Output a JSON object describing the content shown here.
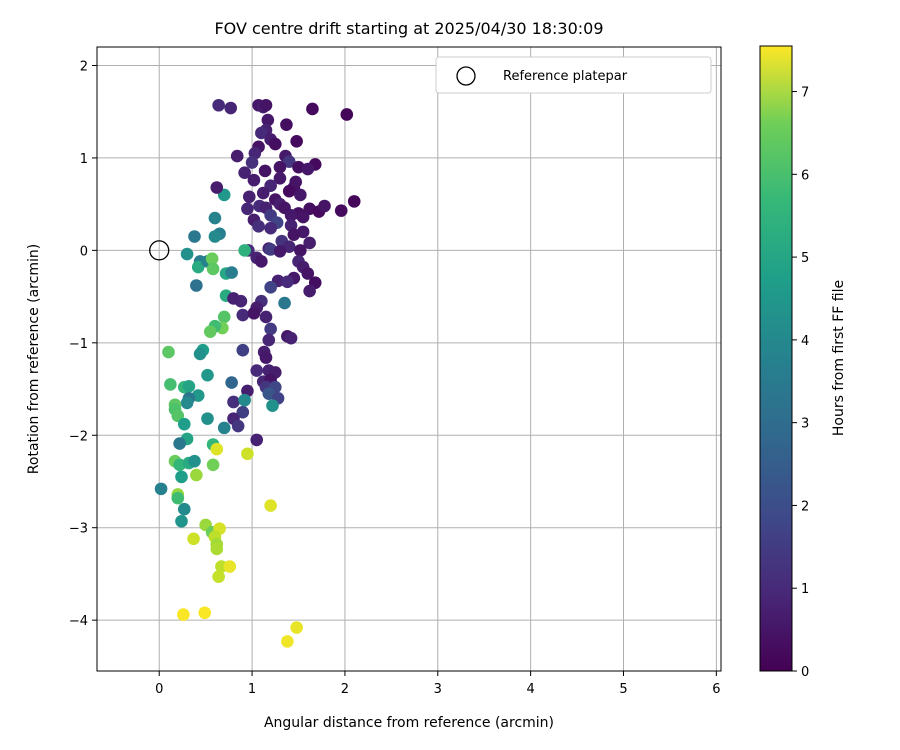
{
  "chart_data": {
    "type": "scatter",
    "title": "FOV centre drift starting at 2025/04/30 18:30:09",
    "xlabel": "Angular distance from reference (arcmin)",
    "ylabel": "Rotation from reference (arcmin)",
    "xlim": [
      -0.67,
      6.05
    ],
    "ylim": [
      -4.55,
      2.2
    ],
    "xticks": [
      "0",
      "1",
      "2",
      "3",
      "4",
      "5",
      "6"
    ],
    "yticks": [
      "−4",
      "−3",
      "−2",
      "−1",
      "0",
      "1",
      "2"
    ],
    "grid": true,
    "colormap": "viridis",
    "colorbar": {
      "label": "Hours from first FF file",
      "range": [
        0,
        7.55
      ],
      "ticks": [
        "0",
        "1",
        "2",
        "3",
        "4",
        "5",
        "6",
        "7"
      ]
    },
    "legend": {
      "position": "top-right",
      "entries": [
        {
          "label": "Reference platepar",
          "marker": "open-circle"
        }
      ]
    },
    "reference_point": [
      0,
      0
    ],
    "points": [
      [
        1.07,
        1.57,
        0.5
      ],
      [
        1.12,
        1.55,
        0.6
      ],
      [
        1.15,
        1.57,
        0.4
      ],
      [
        0.64,
        1.57,
        0.9
      ],
      [
        0.77,
        1.54,
        0.8
      ],
      [
        1.65,
        1.53,
        0.2
      ],
      [
        2.02,
        1.47,
        0.1
      ],
      [
        1.17,
        1.41,
        0.5
      ],
      [
        1.15,
        1.3,
        0.7
      ],
      [
        1.1,
        1.27,
        0.9
      ],
      [
        1.37,
        1.36,
        0.3
      ],
      [
        1.2,
        1.2,
        0.6
      ],
      [
        1.07,
        1.12,
        0.4
      ],
      [
        1.03,
        1.05,
        0.8
      ],
      [
        1.25,
        1.15,
        0.3
      ],
      [
        1.48,
        1.18,
        0.2
      ],
      [
        1.0,
        0.95,
        1.0
      ],
      [
        0.84,
        1.02,
        0.6
      ],
      [
        1.36,
        1.02,
        0.5
      ],
      [
        1.4,
        0.96,
        1.2
      ],
      [
        1.3,
        0.9,
        0.4
      ],
      [
        1.5,
        0.9,
        0.3
      ],
      [
        1.68,
        0.93,
        0.2
      ],
      [
        1.6,
        0.88,
        0.5
      ],
      [
        0.92,
        0.84,
        0.7
      ],
      [
        1.14,
        0.86,
        0.4
      ],
      [
        1.3,
        0.78,
        0.5
      ],
      [
        1.02,
        0.76,
        0.6
      ],
      [
        1.2,
        0.7,
        0.8
      ],
      [
        1.45,
        0.68,
        0.3
      ],
      [
        1.47,
        0.74,
        0.4
      ],
      [
        1.4,
        0.64,
        0.2
      ],
      [
        1.12,
        0.62,
        0.6
      ],
      [
        1.52,
        0.6,
        0.5
      ],
      [
        0.97,
        0.58,
        0.7
      ],
      [
        1.25,
        0.55,
        0.4
      ],
      [
        1.62,
        0.45,
        0.3
      ],
      [
        1.72,
        0.42,
        0.2
      ],
      [
        1.78,
        0.48,
        0.4
      ],
      [
        2.1,
        0.53,
        0.1
      ],
      [
        1.96,
        0.43,
        0.2
      ],
      [
        1.08,
        0.48,
        0.9
      ],
      [
        1.3,
        0.5,
        0.6
      ],
      [
        1.35,
        0.46,
        0.4
      ],
      [
        1.15,
        0.46,
        0.7
      ],
      [
        0.95,
        0.45,
        0.8
      ],
      [
        1.5,
        0.4,
        0.3
      ],
      [
        1.42,
        0.38,
        0.5
      ],
      [
        1.55,
        0.36,
        0.4
      ],
      [
        1.2,
        0.38,
        1.3
      ],
      [
        1.02,
        0.33,
        0.6
      ],
      [
        1.27,
        0.3,
        1.5
      ],
      [
        1.42,
        0.27,
        0.7
      ],
      [
        1.07,
        0.26,
        1.0
      ],
      [
        1.2,
        0.24,
        0.9
      ],
      [
        1.55,
        0.2,
        0.5
      ],
      [
        1.45,
        0.17,
        0.4
      ],
      [
        1.32,
        0.1,
        1.1
      ],
      [
        1.62,
        0.08,
        0.6
      ],
      [
        1.4,
        0.04,
        0.8
      ],
      [
        1.18,
        0.02,
        0.7
      ],
      [
        1.2,
        0.01,
        1.3
      ],
      [
        1.3,
        -0.01,
        0.5
      ],
      [
        1.52,
        0.0,
        0.4
      ],
      [
        0.96,
        0.0,
        0.9
      ],
      [
        0.92,
        0.0,
        4.8
      ],
      [
        1.05,
        -0.08,
        0.7
      ],
      [
        1.1,
        -0.12,
        0.5
      ],
      [
        1.5,
        -0.12,
        0.8
      ],
      [
        1.55,
        -0.18,
        0.6
      ],
      [
        1.6,
        -0.25,
        0.4
      ],
      [
        1.28,
        -0.33,
        0.7
      ],
      [
        1.45,
        -0.3,
        0.5
      ],
      [
        1.38,
        -0.34,
        0.9
      ],
      [
        1.68,
        -0.35,
        0.3
      ],
      [
        1.62,
        -0.44,
        0.6
      ],
      [
        1.2,
        -0.4,
        1.5
      ],
      [
        0.88,
        -0.55,
        0.8
      ],
      [
        1.1,
        -0.55,
        1.0
      ],
      [
        1.05,
        -0.62,
        0.6
      ],
      [
        1.15,
        -0.72,
        0.7
      ],
      [
        0.9,
        -0.7,
        0.9
      ],
      [
        1.02,
        -0.68,
        0.4
      ],
      [
        1.35,
        -0.57,
        3.0
      ],
      [
        1.2,
        -0.85,
        1.3
      ],
      [
        1.38,
        -0.93,
        0.5
      ],
      [
        1.42,
        -0.95,
        0.7
      ],
      [
        1.18,
        -0.97,
        0.8
      ],
      [
        1.13,
        -1.1,
        0.6
      ],
      [
        1.15,
        -1.16,
        0.5
      ],
      [
        1.18,
        -1.3,
        0.7
      ],
      [
        1.05,
        -1.3,
        0.9
      ],
      [
        1.25,
        -1.32,
        0.6
      ],
      [
        1.12,
        -1.42,
        0.8
      ],
      [
        1.2,
        -1.4,
        0.4
      ],
      [
        1.15,
        -1.48,
        1.2
      ],
      [
        1.25,
        -1.48,
        1.6
      ],
      [
        1.18,
        -1.55,
        2.0
      ],
      [
        1.28,
        -1.6,
        1.5
      ],
      [
        0.9,
        -1.08,
        1.4
      ],
      [
        0.95,
        -1.52,
        0.6
      ],
      [
        0.78,
        -1.43,
        2.5
      ],
      [
        0.8,
        -1.64,
        1.0
      ],
      [
        0.9,
        -1.75,
        1.4
      ],
      [
        0.92,
        -1.62,
        3.6
      ],
      [
        0.8,
        -1.82,
        0.8
      ],
      [
        0.85,
        -1.9,
        1.2
      ],
      [
        0.7,
        -1.92,
        3.4
      ],
      [
        1.05,
        -2.05,
        0.7
      ],
      [
        1.22,
        -1.68,
        3.8
      ],
      [
        0.38,
        0.15,
        3.0
      ],
      [
        0.3,
        -0.04,
        3.8
      ],
      [
        0.44,
        -0.12,
        3.2
      ],
      [
        0.42,
        -0.18,
        4.6
      ],
      [
        0.52,
        -0.12,
        3.4
      ],
      [
        0.57,
        -0.09,
        5.8
      ],
      [
        0.58,
        -0.2,
        5.6
      ],
      [
        0.4,
        -0.38,
        2.8
      ],
      [
        0.72,
        -0.25,
        4.5
      ],
      [
        0.78,
        -0.24,
        3.2
      ],
      [
        0.72,
        -0.49,
        4.6
      ],
      [
        0.65,
        0.18,
        3.2
      ],
      [
        0.6,
        0.15,
        3.6
      ],
      [
        0.6,
        0.35,
        3.4
      ],
      [
        0.7,
        0.6,
        4.0
      ],
      [
        0.62,
        0.68,
        0.6
      ],
      [
        0.8,
        -0.52,
        0.7
      ],
      [
        0.7,
        -0.72,
        5.5
      ],
      [
        0.68,
        -0.84,
        5.9
      ],
      [
        0.6,
        -0.82,
        5.2
      ],
      [
        0.55,
        -0.88,
        5.7
      ],
      [
        0.47,
        -1.08,
        4.2
      ],
      [
        0.44,
        -1.12,
        3.8
      ],
      [
        0.1,
        -1.1,
        5.6
      ],
      [
        0.12,
        -1.45,
        5.3
      ],
      [
        0.27,
        -1.48,
        5.0
      ],
      [
        0.32,
        -1.47,
        4.4
      ],
      [
        0.42,
        -1.57,
        4.0
      ],
      [
        0.32,
        -1.6,
        3.0
      ],
      [
        0.3,
        -1.65,
        3.6
      ],
      [
        0.52,
        -1.35,
        4.0
      ],
      [
        0.17,
        -1.67,
        5.6
      ],
      [
        0.17,
        -1.72,
        5.4
      ],
      [
        0.2,
        -1.79,
        5.5
      ],
      [
        0.27,
        -1.88,
        4.2
      ],
      [
        0.52,
        -1.82,
        3.8
      ],
      [
        0.3,
        -2.04,
        4.4
      ],
      [
        0.22,
        -2.09,
        3.0
      ],
      [
        0.58,
        -2.1,
        5.0
      ],
      [
        0.17,
        -2.28,
        5.8
      ],
      [
        0.22,
        -2.32,
        5.0
      ],
      [
        0.32,
        -2.3,
        4.6
      ],
      [
        0.38,
        -2.28,
        3.8
      ],
      [
        0.24,
        -2.45,
        4.2
      ],
      [
        0.58,
        -2.32,
        5.9
      ],
      [
        0.4,
        -2.43,
        6.4
      ],
      [
        0.62,
        -2.15,
        7.2
      ],
      [
        0.95,
        -2.2,
        7.0
      ],
      [
        0.02,
        -2.58,
        3.3
      ],
      [
        0.2,
        -2.64,
        6.3
      ],
      [
        0.2,
        -2.68,
        5.2
      ],
      [
        0.27,
        -2.8,
        3.6
      ],
      [
        0.24,
        -2.93,
        3.9
      ],
      [
        0.5,
        -2.97,
        6.4
      ],
      [
        0.57,
        -3.05,
        5.8
      ],
      [
        0.65,
        -3.01,
        7.1
      ],
      [
        0.37,
        -3.12,
        7.0
      ],
      [
        0.6,
        -3.1,
        6.8
      ],
      [
        0.62,
        -3.18,
        6.5
      ],
      [
        0.62,
        -3.23,
        6.6
      ],
      [
        0.67,
        -3.42,
        6.8
      ],
      [
        0.76,
        -3.42,
        7.3
      ],
      [
        0.64,
        -3.53,
        6.9
      ],
      [
        1.2,
        -2.76,
        7.2
      ],
      [
        0.26,
        -3.94,
        7.5
      ],
      [
        0.49,
        -3.92,
        7.5
      ],
      [
        1.48,
        -4.08,
        7.3
      ],
      [
        1.38,
        -4.23,
        7.4
      ]
    ]
  }
}
